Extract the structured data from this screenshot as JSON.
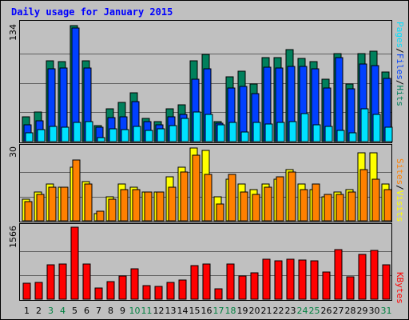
{
  "chart_data": {
    "type": "bar",
    "title": "Daily usage for January 2015",
    "categories": [
      "1",
      "2",
      "3",
      "4",
      "5",
      "6",
      "7",
      "8",
      "9",
      "10",
      "11",
      "12",
      "13",
      "14",
      "15",
      "16",
      "17",
      "18",
      "19",
      "20",
      "21",
      "22",
      "23",
      "24",
      "25",
      "26",
      "27",
      "28",
      "29",
      "30",
      "31"
    ],
    "weekend_days": [
      "3",
      "4",
      "10",
      "11",
      "17",
      "18",
      "24",
      "25",
      "31"
    ],
    "panels": [
      {
        "id": "hits",
        "ymax_label": "134",
        "ymax": 134,
        "series": [
          {
            "name": "Hits",
            "color": "#00805c",
            "values": [
              28,
              34,
              92,
              91,
              132,
              92,
              18,
              37,
              45,
              56,
              26,
              23,
              37,
              42,
              92,
              99,
              23,
              74,
              80,
              66,
              96,
              96,
              105,
              95,
              91,
              71,
              100,
              66,
              100,
              103,
              79
            ]
          },
          {
            "name": "Files",
            "color": "#0040ff",
            "values": [
              19,
              24,
              83,
              84,
              129,
              84,
              16,
              27,
              28,
              46,
              23,
              19,
              28,
              31,
              71,
              83,
              21,
              61,
              63,
              55,
              85,
              84,
              86,
              86,
              83,
              61,
              96,
              60,
              88,
              87,
              72
            ]
          },
          {
            "name": "Pages",
            "color": "#00e0ff",
            "values": [
              10,
              14,
              17,
              16,
              22,
              23,
              5,
              15,
              14,
              17,
              13,
              15,
              18,
              26,
              34,
              31,
              19,
              22,
              11,
              22,
              20,
              22,
              23,
              32,
              19,
              17,
              13,
              10,
              37,
              31,
              16
            ]
          }
        ]
      },
      {
        "id": "visits",
        "ymax_label": "30",
        "ymax": 30,
        "series": [
          {
            "name": "Visits",
            "color": "#ffff00",
            "values": [
              9,
              12,
              15,
              14,
              22,
              16,
              3,
              10,
              15,
              14,
              12,
              12,
              18,
              22,
              30,
              29,
              10,
              17,
              15,
              13,
              15,
              17,
              21,
              15,
              13,
              10,
              12,
              13,
              28,
              28,
              15
            ]
          },
          {
            "name": "Sites",
            "color": "#ff8000",
            "values": [
              8,
              11,
              14,
              14,
              25,
              15,
              4,
              9,
              13,
              13,
              12,
              12,
              14,
              20,
              27,
              19,
              7,
              19,
              12,
              11,
              14,
              18,
              20,
              13,
              15,
              11,
              11,
              12,
              21,
              17,
              13
            ]
          }
        ]
      },
      {
        "id": "kbytes",
        "ymax_label": "1566",
        "ymax": 1566,
        "series": [
          {
            "name": "KBytes",
            "color": "#ff0000",
            "values": [
              340,
              357,
              754,
              764,
              1566,
              758,
              244,
              384,
              508,
              653,
              300,
              280,
              370,
              425,
              732,
              774,
              220,
              771,
              507,
              576,
              869,
              839,
              872,
              855,
              840,
              600,
              1082,
              495,
              979,
              1060,
              754
            ]
          }
        ]
      }
    ],
    "side_labels": [
      {
        "panel": "hits",
        "parts": [
          {
            "text": "Pages",
            "color": "#00e0ff"
          },
          {
            "text": "/",
            "color": "#000000"
          },
          {
            "text": "Files",
            "color": "#0040ff"
          },
          {
            "text": "/",
            "color": "#000000"
          },
          {
            "text": "Hits",
            "color": "#00805c"
          }
        ]
      },
      {
        "panel": "visits",
        "parts": [
          {
            "text": "Sites",
            "color": "#ff8000"
          },
          {
            "text": "/",
            "color": "#000000"
          },
          {
            "text": "Visits",
            "color": "#ffff00"
          }
        ]
      },
      {
        "panel": "kbytes",
        "parts": [
          {
            "text": "KBytes",
            "color": "#ff0000"
          }
        ]
      }
    ],
    "colors": {
      "background": "#c0c0c0",
      "plot": "#c0c0c0",
      "grid": "#606060",
      "title": "#0000ff",
      "tick_weekday": "#000000",
      "tick_weekend": "#008040"
    },
    "grid": true,
    "legend": "right"
  }
}
